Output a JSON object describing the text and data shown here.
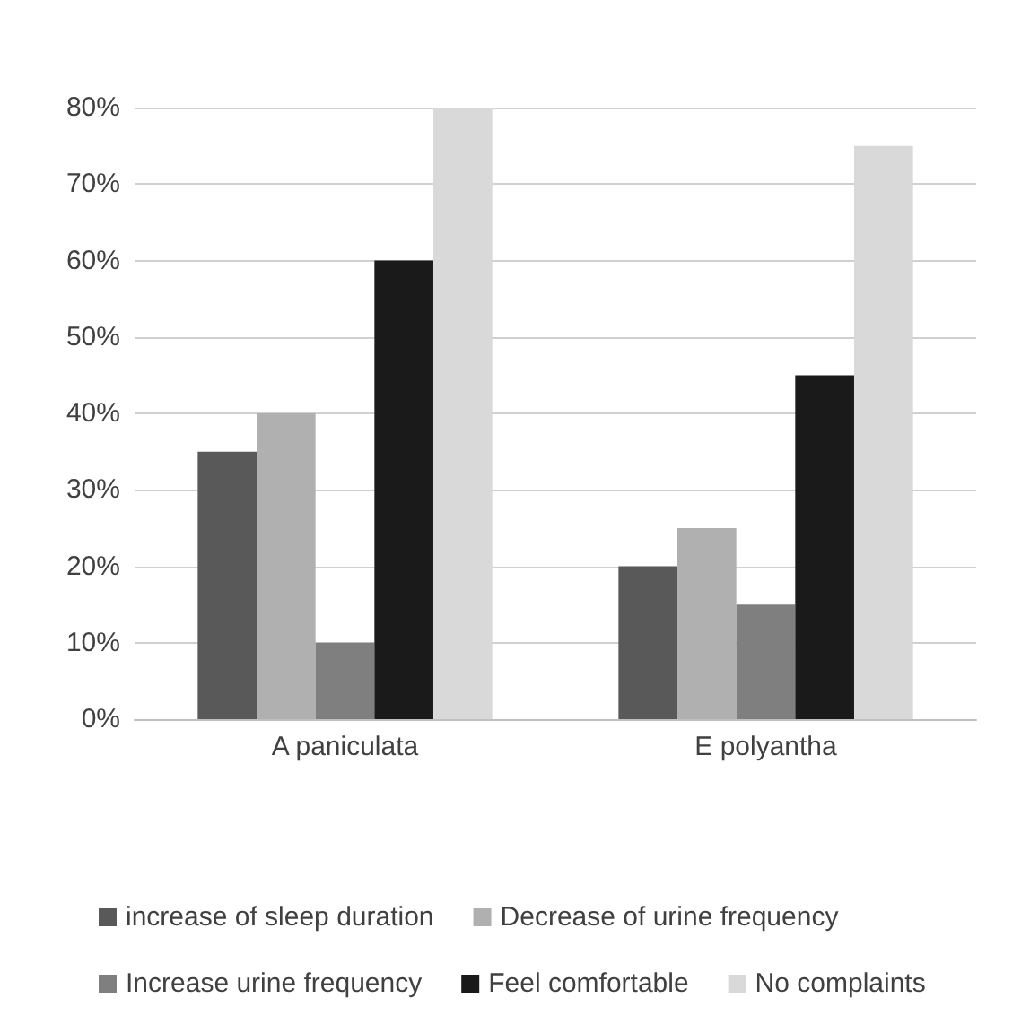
{
  "chart_data": {
    "type": "bar",
    "categories": [
      "A paniculata",
      "E polyantha"
    ],
    "series": [
      {
        "name": "increase of sleep duration",
        "color": "#595959",
        "values": [
          35,
          20
        ]
      },
      {
        "name": "Decrease of urine frequency",
        "color": "#b0b0b0",
        "values": [
          40,
          25
        ]
      },
      {
        "name": "Increase urine frequency",
        "color": "#7f7f7f",
        "values": [
          10,
          15
        ]
      },
      {
        "name": "Feel comfortable",
        "color": "#1a1a1a",
        "values": [
          60,
          45
        ]
      },
      {
        "name": "No complaints",
        "color": "#d9d9d9",
        "values": [
          80,
          75
        ]
      }
    ],
    "ylim": [
      0,
      80
    ],
    "yticks": [
      {
        "value": 0,
        "label": "0%"
      },
      {
        "value": 10,
        "label": "10%"
      },
      {
        "value": 20,
        "label": "20%"
      },
      {
        "value": 30,
        "label": "30%"
      },
      {
        "value": 40,
        "label": "40%"
      },
      {
        "value": 50,
        "label": "50%"
      },
      {
        "value": 60,
        "label": "60%"
      },
      {
        "value": 70,
        "label": "70%"
      },
      {
        "value": 80,
        "label": "80%"
      }
    ],
    "grid": "y",
    "legend": "bottom"
  }
}
